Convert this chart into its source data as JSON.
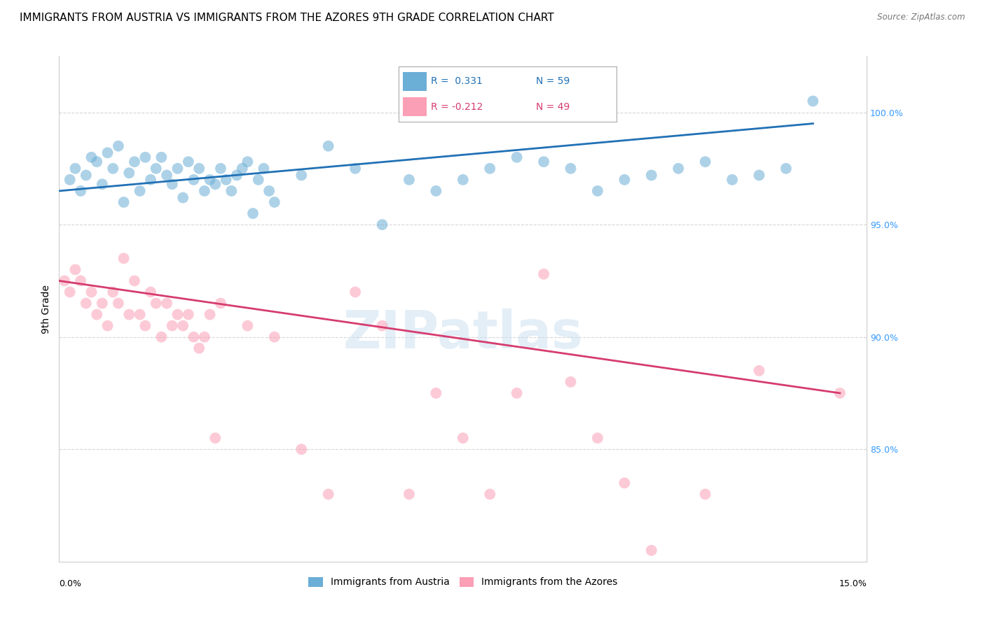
{
  "title": "IMMIGRANTS FROM AUSTRIA VS IMMIGRANTS FROM THE AZORES 9TH GRADE CORRELATION CHART",
  "source": "Source: ZipAtlas.com",
  "ylabel": "9th Grade",
  "y_ticks": [
    85.0,
    90.0,
    95.0,
    100.0
  ],
  "y_tick_labels": [
    "85.0%",
    "90.0%",
    "95.0%",
    "100.0%"
  ],
  "xlim": [
    0.0,
    15.0
  ],
  "ylim": [
    80.0,
    102.5
  ],
  "watermark": "ZIPatlas",
  "legend_r_austria": "R =  0.331",
  "legend_n_austria": "N = 59",
  "legend_r_azores": "R = -0.212",
  "legend_n_azores": "N = 49",
  "austria_color": "#6baed6",
  "azores_color": "#fa9fb5",
  "austria_line_color": "#2171b5",
  "azores_line_color": "#d63c6e",
  "austria_scatter_x": [
    0.2,
    0.3,
    0.4,
    0.5,
    0.6,
    0.7,
    0.8,
    0.9,
    1.0,
    1.1,
    1.2,
    1.3,
    1.4,
    1.5,
    1.6,
    1.7,
    1.8,
    1.9,
    2.0,
    2.1,
    2.2,
    2.3,
    2.4,
    2.5,
    2.6,
    2.7,
    2.8,
    2.9,
    3.0,
    3.1,
    3.2,
    3.3,
    3.4,
    3.5,
    3.6,
    3.7,
    3.8,
    3.9,
    4.0,
    4.5,
    5.0,
    5.5,
    6.0,
    6.5,
    7.0,
    7.5,
    8.0,
    8.5,
    9.0,
    9.5,
    10.0,
    10.5,
    11.0,
    11.5,
    12.0,
    12.5,
    13.0,
    13.5,
    14.0
  ],
  "austria_scatter_y": [
    97.0,
    97.5,
    96.5,
    97.2,
    98.0,
    97.8,
    96.8,
    98.2,
    97.5,
    98.5,
    96.0,
    97.3,
    97.8,
    96.5,
    98.0,
    97.0,
    97.5,
    98.0,
    97.2,
    96.8,
    97.5,
    96.2,
    97.8,
    97.0,
    97.5,
    96.5,
    97.0,
    96.8,
    97.5,
    97.0,
    96.5,
    97.2,
    97.5,
    97.8,
    95.5,
    97.0,
    97.5,
    96.5,
    96.0,
    97.2,
    98.5,
    97.5,
    95.0,
    97.0,
    96.5,
    97.0,
    97.5,
    98.0,
    97.8,
    97.5,
    96.5,
    97.0,
    97.2,
    97.5,
    97.8,
    97.0,
    97.2,
    97.5,
    100.5
  ],
  "azores_scatter_x": [
    0.1,
    0.2,
    0.3,
    0.4,
    0.5,
    0.6,
    0.7,
    0.8,
    0.9,
    1.0,
    1.1,
    1.2,
    1.3,
    1.4,
    1.5,
    1.6,
    1.7,
    1.8,
    1.9,
    2.0,
    2.1,
    2.2,
    2.3,
    2.4,
    2.5,
    2.6,
    2.7,
    2.8,
    2.9,
    3.0,
    3.5,
    4.0,
    4.5,
    5.0,
    5.5,
    6.0,
    6.5,
    7.0,
    7.5,
    8.0,
    8.5,
    9.0,
    9.5,
    10.0,
    10.5,
    11.0,
    12.0,
    13.0,
    14.5
  ],
  "azores_scatter_y": [
    92.5,
    92.0,
    93.0,
    92.5,
    91.5,
    92.0,
    91.0,
    91.5,
    90.5,
    92.0,
    91.5,
    93.5,
    91.0,
    92.5,
    91.0,
    90.5,
    92.0,
    91.5,
    90.0,
    91.5,
    90.5,
    91.0,
    90.5,
    91.0,
    90.0,
    89.5,
    90.0,
    91.0,
    85.5,
    91.5,
    90.5,
    90.0,
    85.0,
    83.0,
    92.0,
    90.5,
    83.0,
    87.5,
    85.5,
    83.0,
    87.5,
    92.8,
    88.0,
    85.5,
    83.5,
    80.5,
    83.0,
    88.5,
    87.5
  ],
  "austria_line_x": [
    0.0,
    14.0
  ],
  "austria_line_y": [
    96.5,
    99.5
  ],
  "azores_line_x": [
    0.0,
    14.5
  ],
  "azores_line_y": [
    92.5,
    87.5
  ],
  "background_color": "#ffffff",
  "grid_color": "#cccccc",
  "title_fontsize": 11,
  "label_fontsize": 10,
  "tick_fontsize": 9
}
